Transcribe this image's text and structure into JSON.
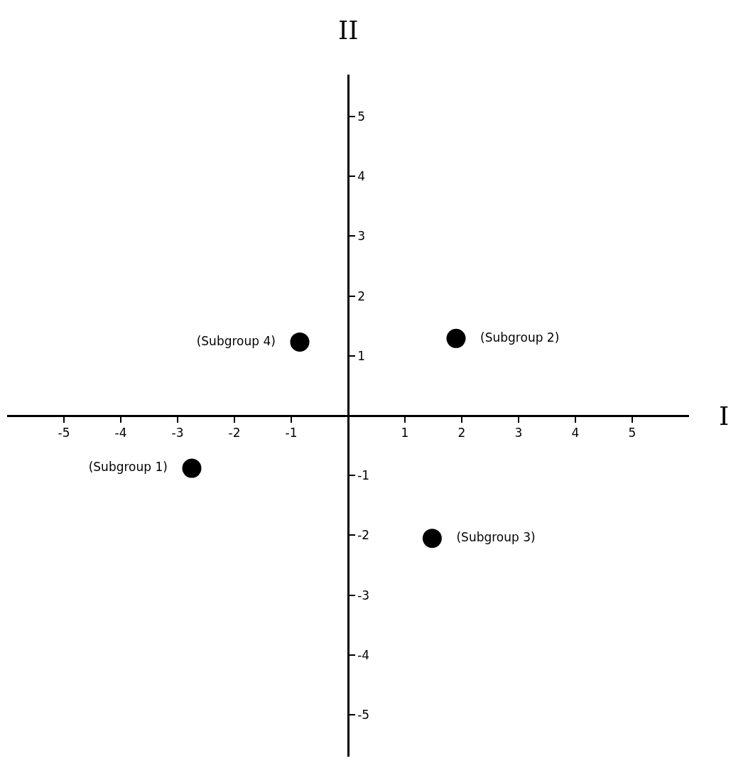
{
  "chart_data": {
    "type": "scatter",
    "xlabel": "I",
    "ylabel": "II",
    "xlim": [
      -6,
      6
    ],
    "ylim": [
      -5.7,
      5.7
    ],
    "xticks": [
      -5,
      -4,
      -3,
      -2,
      -1,
      1,
      2,
      3,
      4,
      5
    ],
    "yticks": [
      -5,
      -4,
      -3,
      -2,
      -1,
      1,
      2,
      3,
      4,
      5
    ],
    "grid": false,
    "legend": false,
    "marker": "circle",
    "series": [
      {
        "name": "(Subgroup 1)",
        "color": "#000000",
        "x": [
          -2.75
        ],
        "values": [
          -0.88
        ]
      },
      {
        "name": "(Subgroup 2)",
        "color": "#000000",
        "x": [
          1.9
        ],
        "values": [
          1.29
        ]
      },
      {
        "name": "(Subgroup 3)",
        "color": "#000000",
        "x": [
          1.48
        ],
        "values": [
          -2.05
        ]
      },
      {
        "name": "(Subgroup 4)",
        "color": "#000000",
        "x": [
          -0.85
        ],
        "values": [
          1.23
        ]
      }
    ]
  }
}
